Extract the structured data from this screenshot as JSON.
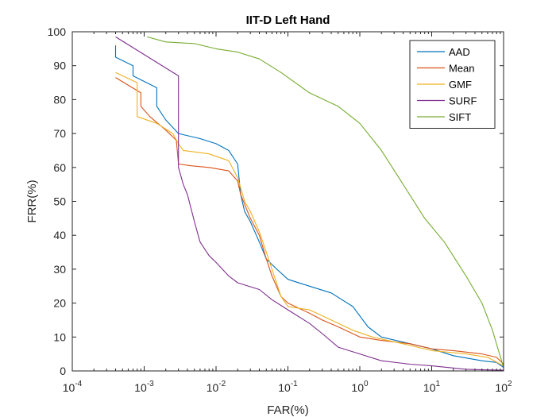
{
  "chart_data": {
    "type": "line",
    "title": "IIT-D Left Hand",
    "xlabel": "FAR(%)",
    "ylabel": "FRR(%)",
    "xscale": "log",
    "xlim": [
      0.0001,
      100
    ],
    "ylim": [
      0,
      100
    ],
    "grid": false,
    "legend_position": "top-right",
    "x_ticks": [
      {
        "value": 0.0001,
        "base": "10",
        "exp": "-4"
      },
      {
        "value": 0.001,
        "base": "10",
        "exp": "-3"
      },
      {
        "value": 0.01,
        "base": "10",
        "exp": "-2"
      },
      {
        "value": 0.1,
        "base": "10",
        "exp": "-1"
      },
      {
        "value": 1,
        "base": "10",
        "exp": "0"
      },
      {
        "value": 10,
        "base": "10",
        "exp": "1"
      },
      {
        "value": 100,
        "base": "10",
        "exp": "2"
      }
    ],
    "y_ticks": [
      0,
      10,
      20,
      30,
      40,
      50,
      60,
      70,
      80,
      90,
      100
    ],
    "series": [
      {
        "name": "AAD",
        "color": "#0072BD",
        "points": [
          [
            0.0004,
            96
          ],
          [
            0.0004,
            92.5
          ],
          [
            0.0007,
            90
          ],
          [
            0.0007,
            87
          ],
          [
            0.0015,
            83.5
          ],
          [
            0.0015,
            78
          ],
          [
            0.002,
            74
          ],
          [
            0.003,
            70
          ],
          [
            0.006,
            68.5
          ],
          [
            0.01,
            67
          ],
          [
            0.015,
            65
          ],
          [
            0.02,
            61
          ],
          [
            0.022,
            52
          ],
          [
            0.025,
            47
          ],
          [
            0.03,
            44
          ],
          [
            0.04,
            38
          ],
          [
            0.05,
            33
          ],
          [
            0.07,
            30
          ],
          [
            0.1,
            27
          ],
          [
            0.2,
            25
          ],
          [
            0.4,
            23
          ],
          [
            0.8,
            19
          ],
          [
            1.3,
            13
          ],
          [
            2,
            10
          ],
          [
            5,
            8
          ],
          [
            10,
            6.5
          ],
          [
            20,
            4.5
          ],
          [
            50,
            3
          ],
          [
            80,
            2.5
          ],
          [
            100,
            1
          ]
        ]
      },
      {
        "name": "Mean",
        "color": "#D95319",
        "points": [
          [
            0.0004,
            86.5
          ],
          [
            0.0009,
            82
          ],
          [
            0.0009,
            78
          ],
          [
            0.0012,
            75
          ],
          [
            0.002,
            71
          ],
          [
            0.0028,
            68
          ],
          [
            0.003,
            61
          ],
          [
            0.0045,
            60.5
          ],
          [
            0.008,
            60
          ],
          [
            0.015,
            59
          ],
          [
            0.02,
            56
          ],
          [
            0.022,
            52
          ],
          [
            0.03,
            45
          ],
          [
            0.04,
            40
          ],
          [
            0.05,
            33
          ],
          [
            0.06,
            28
          ],
          [
            0.08,
            22
          ],
          [
            0.1,
            20
          ],
          [
            0.2,
            17
          ],
          [
            0.3,
            15
          ],
          [
            0.5,
            13
          ],
          [
            1,
            10
          ],
          [
            2,
            9
          ],
          [
            5,
            8
          ],
          [
            10,
            6.5
          ],
          [
            20,
            6
          ],
          [
            50,
            5
          ],
          [
            80,
            4
          ],
          [
            100,
            2
          ]
        ]
      },
      {
        "name": "GMF",
        "color": "#EDB120",
        "points": [
          [
            0.0004,
            88
          ],
          [
            0.0008,
            85
          ],
          [
            0.0008,
            75
          ],
          [
            0.0015,
            73
          ],
          [
            0.0025,
            70
          ],
          [
            0.003,
            67
          ],
          [
            0.0035,
            65
          ],
          [
            0.008,
            64
          ],
          [
            0.015,
            62
          ],
          [
            0.02,
            57
          ],
          [
            0.025,
            50
          ],
          [
            0.03,
            47
          ],
          [
            0.04,
            41
          ],
          [
            0.05,
            35
          ],
          [
            0.06,
            30
          ],
          [
            0.08,
            22
          ],
          [
            0.1,
            19
          ],
          [
            0.2,
            18
          ],
          [
            0.4,
            15
          ],
          [
            0.8,
            12
          ],
          [
            1.5,
            10
          ],
          [
            4,
            8
          ],
          [
            10,
            6
          ],
          [
            30,
            5
          ],
          [
            60,
            4
          ],
          [
            100,
            1.5
          ]
        ]
      },
      {
        "name": "SURF",
        "color": "#7E2F8E",
        "points": [
          [
            0.0004,
            98.5
          ],
          [
            0.003,
            87
          ],
          [
            0.003,
            60
          ],
          [
            0.0035,
            55
          ],
          [
            0.004,
            52
          ],
          [
            0.005,
            44
          ],
          [
            0.006,
            38
          ],
          [
            0.008,
            34
          ],
          [
            0.01,
            32
          ],
          [
            0.015,
            28
          ],
          [
            0.02,
            26
          ],
          [
            0.04,
            24
          ],
          [
            0.06,
            21
          ],
          [
            0.1,
            18
          ],
          [
            0.2,
            14
          ],
          [
            0.3,
            11
          ],
          [
            0.5,
            7
          ],
          [
            1,
            5
          ],
          [
            2,
            3
          ],
          [
            5,
            2
          ],
          [
            10,
            1.5
          ],
          [
            30,
            0.5
          ],
          [
            60,
            0.3
          ],
          [
            100,
            0.2
          ]
        ]
      },
      {
        "name": "SIFT",
        "color": "#77AC30",
        "points": [
          [
            0.0011,
            98.5
          ],
          [
            0.002,
            97
          ],
          [
            0.005,
            96.5
          ],
          [
            0.01,
            95
          ],
          [
            0.02,
            94
          ],
          [
            0.04,
            92
          ],
          [
            0.08,
            88
          ],
          [
            0.2,
            82
          ],
          [
            0.5,
            78
          ],
          [
            1,
            73
          ],
          [
            2,
            65
          ],
          [
            4,
            55
          ],
          [
            8,
            45
          ],
          [
            15,
            38
          ],
          [
            30,
            28
          ],
          [
            50,
            20
          ],
          [
            70,
            12
          ],
          [
            85,
            6
          ],
          [
            100,
            1
          ]
        ]
      }
    ]
  }
}
